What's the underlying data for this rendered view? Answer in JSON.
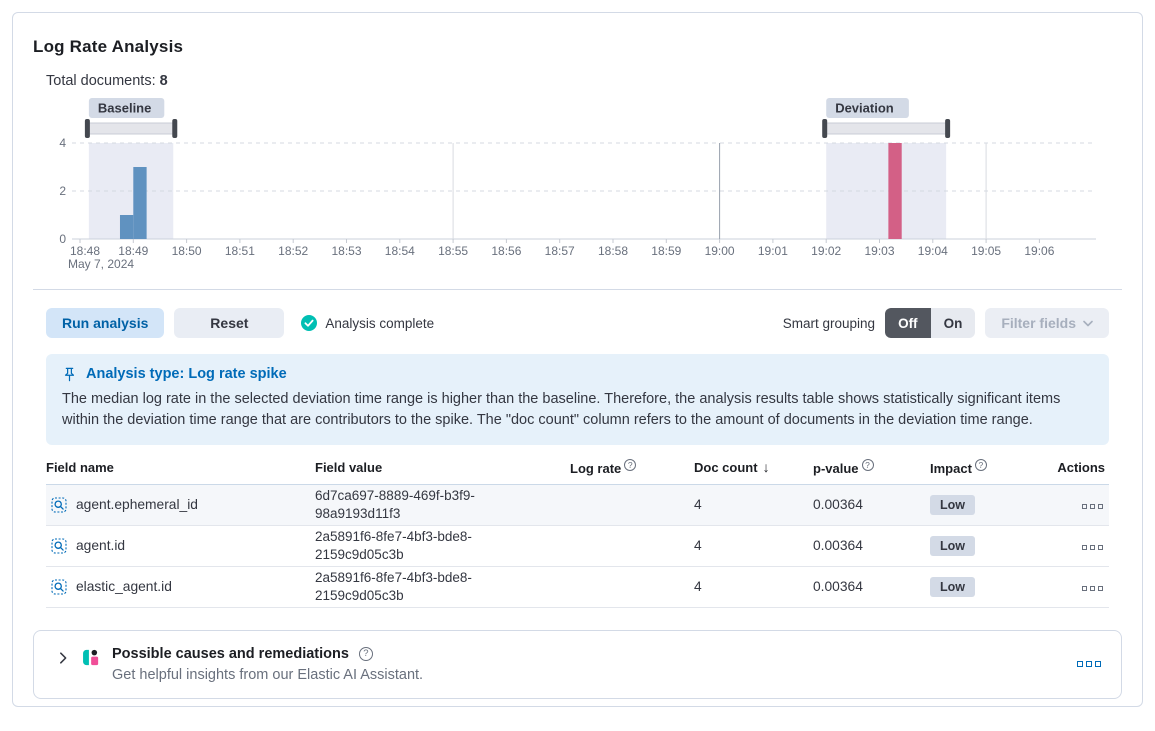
{
  "panel": {
    "title": "Log Rate Analysis"
  },
  "summary": {
    "label": "Total documents:",
    "value": "8"
  },
  "chart_data": {
    "type": "bar",
    "ylabel": "",
    "xlabel": "",
    "ylim": [
      0,
      4
    ],
    "y_ticks": [
      0,
      2,
      4
    ],
    "x_ticks": [
      "18:48",
      "18:49",
      "18:50",
      "18:51",
      "18:52",
      "18:53",
      "18:54",
      "18:55",
      "18:56",
      "18:57",
      "18:58",
      "18:59",
      "19:00",
      "19:01",
      "19:02",
      "19:03",
      "19:04",
      "19:05",
      "19:06"
    ],
    "x_date_label": "May 7, 2024",
    "bar_width_seconds": 15,
    "grid": true,
    "bars": [
      {
        "time": "18:48:45",
        "value": 1,
        "series": "baseline"
      },
      {
        "time": "18:49:00",
        "value": 3,
        "series": "baseline"
      },
      {
        "time": "19:03:10",
        "value": 4,
        "series": "deviation"
      }
    ],
    "windows": [
      {
        "label": "Baseline",
        "from": "18:48:10",
        "to": "18:49:45"
      },
      {
        "label": "Deviation",
        "from": "19:02:00",
        "to": "19:04:15"
      }
    ],
    "colors": {
      "baseline": "#6092C0",
      "deviation": "#D36086",
      "window_fill": "#E9EBF4",
      "brush_track": "#E4E5EA",
      "brush_handle": "#44484F",
      "badge_bg": "#D3DAE6",
      "grid_light": "#D8DBE1",
      "grid_dark": "#98A0AD",
      "axis_text": "#69707D"
    }
  },
  "controls": {
    "run_label": "Run analysis",
    "reset_label": "Reset",
    "status_label": "Analysis complete",
    "smart_grouping_label": "Smart grouping",
    "toggle_off": "Off",
    "toggle_on": "On",
    "filter_label": "Filter fields"
  },
  "callout": {
    "title": "Analysis type: Log rate spike",
    "body": "The median log rate in the selected deviation time range is higher than the baseline. Therefore, the analysis results table shows statistically significant items within the deviation time range that are contributors to the spike. The \"doc count\" column refers to the amount of documents in the deviation time range."
  },
  "table": {
    "columns": [
      {
        "label": "Field name"
      },
      {
        "label": "Field value"
      },
      {
        "label": "Log rate",
        "info": true
      },
      {
        "label": "Doc count",
        "sort": "desc"
      },
      {
        "label": "p-value",
        "info": true
      },
      {
        "label": "Impact",
        "info": true
      },
      {
        "label": "Actions"
      }
    ],
    "rows": [
      {
        "field": "agent.ephemeral_id",
        "value": "6d7ca697-8889-469f-b3f9-98a9193d11f3",
        "doc_count": "4",
        "p_value": "0.00364",
        "impact": "Low"
      },
      {
        "field": "agent.id",
        "value": "2a5891f6-8fe7-4bf3-bde8-2159c9d05c3b",
        "doc_count": "4",
        "p_value": "0.00364",
        "impact": "Low"
      },
      {
        "field": "elastic_agent.id",
        "value": "2a5891f6-8fe7-4bf3-bde8-2159c9d05c3b",
        "doc_count": "4",
        "p_value": "0.00364",
        "impact": "Low"
      }
    ]
  },
  "footer_panel": {
    "title": "Possible causes and remediations",
    "subtitle": "Get helpful insights from our Elastic AI Assistant."
  },
  "ui_colors": {
    "primary": "#006BB8",
    "primary_btn_bg": "#D3E5F8",
    "callout_bg": "#E6F1FA",
    "status_check": "#00BFB3",
    "ai_teal": "#00BFB3",
    "ai_pink": "#F04E98",
    "ai_dark": "#1D1E24"
  }
}
